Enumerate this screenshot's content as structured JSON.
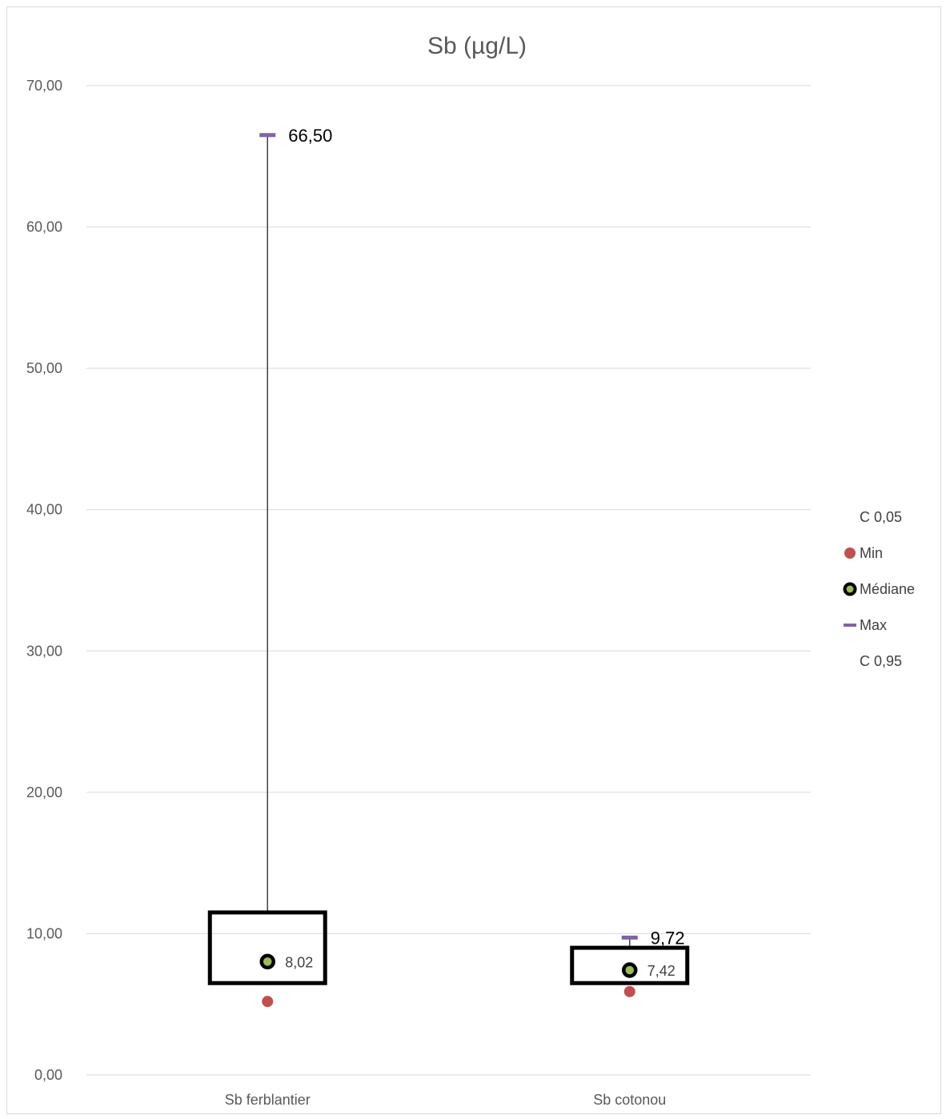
{
  "chart_data": {
    "type": "box",
    "title": "Sb (µg/L)",
    "xlabel": "",
    "ylabel": "",
    "ylim": [
      0,
      70
    ],
    "yticks": [
      "0,00",
      "10,00",
      "20,00",
      "30,00",
      "40,00",
      "50,00",
      "60,00",
      "70,00"
    ],
    "grid": true,
    "legend_position": "right",
    "categories": [
      "Sb ferblantier",
      "Sb cotonou"
    ],
    "series": [
      {
        "name": "C 0,05",
        "values": [
          6.5,
          6.5
        ]
      },
      {
        "name": "Min",
        "values": [
          5.2,
          5.9
        ]
      },
      {
        "name": "Médiane",
        "values": [
          8.02,
          7.42
        ]
      },
      {
        "name": "Max",
        "values": [
          66.5,
          9.72
        ]
      },
      {
        "name": "C 0,95",
        "values": [
          11.5,
          9.0
        ]
      }
    ],
    "data_labels": {
      "max": [
        "66,50",
        "9,72"
      ],
      "median": [
        "8,02",
        "7,42"
      ]
    },
    "colors": {
      "min": "#c0504d",
      "median_fill": "#9bbb59",
      "median_ring": "#000000",
      "max": "#8064a2",
      "box": "#000000",
      "grid": "#d9d9d9"
    }
  }
}
